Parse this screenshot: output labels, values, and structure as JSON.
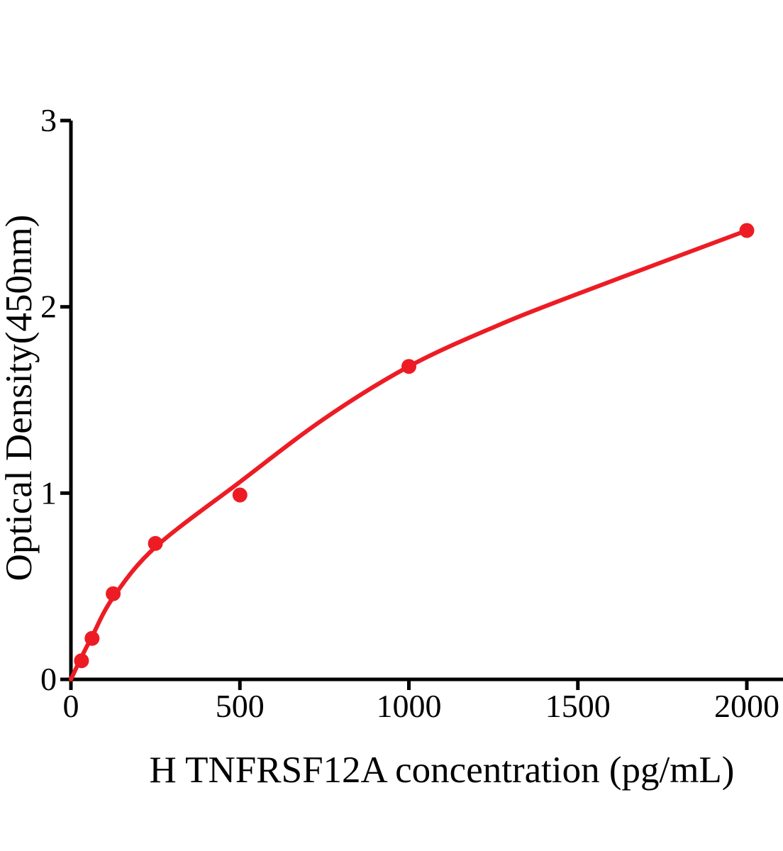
{
  "chart_data": {
    "type": "scatter",
    "title": "",
    "xlabel": "H TNFRSF12A concentration (pg/mL)",
    "ylabel": "Optical Density(450nm)",
    "xlim": [
      0,
      2000
    ],
    "ylim": [
      0,
      3
    ],
    "x_ticks": [
      "0",
      "500",
      "1000",
      "1500",
      "2000"
    ],
    "x_tick_values": [
      0,
      500,
      1000,
      1500,
      2000
    ],
    "y_ticks": [
      "0",
      "1",
      "2",
      "3"
    ],
    "y_tick_values": [
      0,
      1,
      2,
      3
    ],
    "grid": false,
    "legend_position": "none",
    "colors": {
      "marker": "#ED1C24",
      "curve": "#ED1C24",
      "axis": "#000000",
      "text": "#000000",
      "background": "#ffffff"
    },
    "series": [
      {
        "marker": "circle",
        "points": [
          {
            "x": 31.25,
            "y": 0.1
          },
          {
            "x": 62.5,
            "y": 0.22
          },
          {
            "x": 125,
            "y": 0.46
          },
          {
            "x": 250,
            "y": 0.73
          },
          {
            "x": 500,
            "y": 0.99
          },
          {
            "x": 1000,
            "y": 1.68
          },
          {
            "x": 2000,
            "y": 2.41
          }
        ]
      }
    ],
    "fit_curve": {
      "points": [
        {
          "x": 0,
          "y": 0.0
        },
        {
          "x": 31.25,
          "y": 0.12
        },
        {
          "x": 62.5,
          "y": 0.23
        },
        {
          "x": 125,
          "y": 0.44
        },
        {
          "x": 250,
          "y": 0.71
        },
        {
          "x": 500,
          "y": 1.06
        },
        {
          "x": 750,
          "y": 1.4
        },
        {
          "x": 1000,
          "y": 1.68
        },
        {
          "x": 1250,
          "y": 1.89
        },
        {
          "x": 1500,
          "y": 2.07
        },
        {
          "x": 2000,
          "y": 2.41
        }
      ]
    }
  }
}
